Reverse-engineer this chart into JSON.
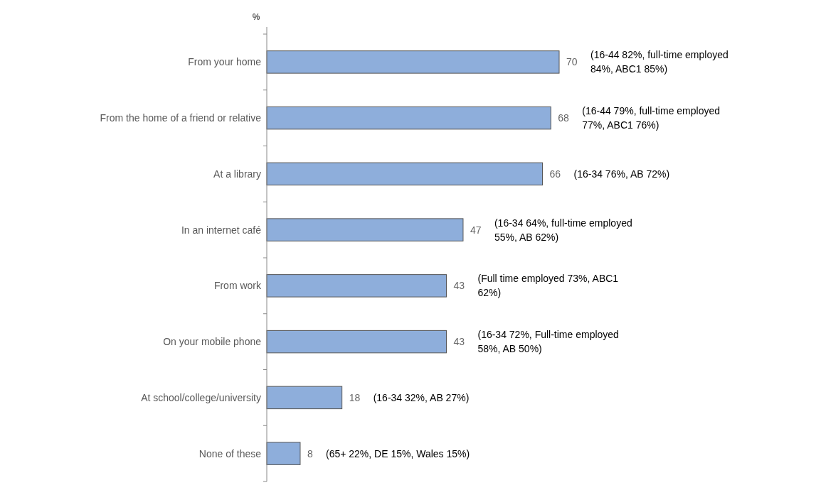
{
  "chart_data": {
    "type": "bar",
    "orientation": "horizontal",
    "ylabel": "%",
    "categories": [
      "From your home",
      "From the home of a friend or relative",
      "At a library",
      "In an internet café",
      "From work",
      "On your mobile phone",
      "At school/college/university",
      "None of these"
    ],
    "values": [
      70,
      68,
      66,
      47,
      43,
      43,
      18,
      8
    ],
    "color": "#8eaedb",
    "data_labels": true,
    "annotations": [
      "(16-44 82%, full-time employed 84%, ABC1 85%)",
      "(16-44 79%, full-time employed 77%, ABC1 76%)",
      "(16-34 76%, AB 72%)",
      "(16-34 64%, full-time employed 55%, AB 62%)",
      "(Full time employed 73%, ABC1 62%)",
      "(16-34 72%, Full-time employed 58%, AB 50%)",
      "(16-34 32%, AB 27%)",
      "(65+ 22%, DE 15%, Wales 15%)"
    ]
  }
}
